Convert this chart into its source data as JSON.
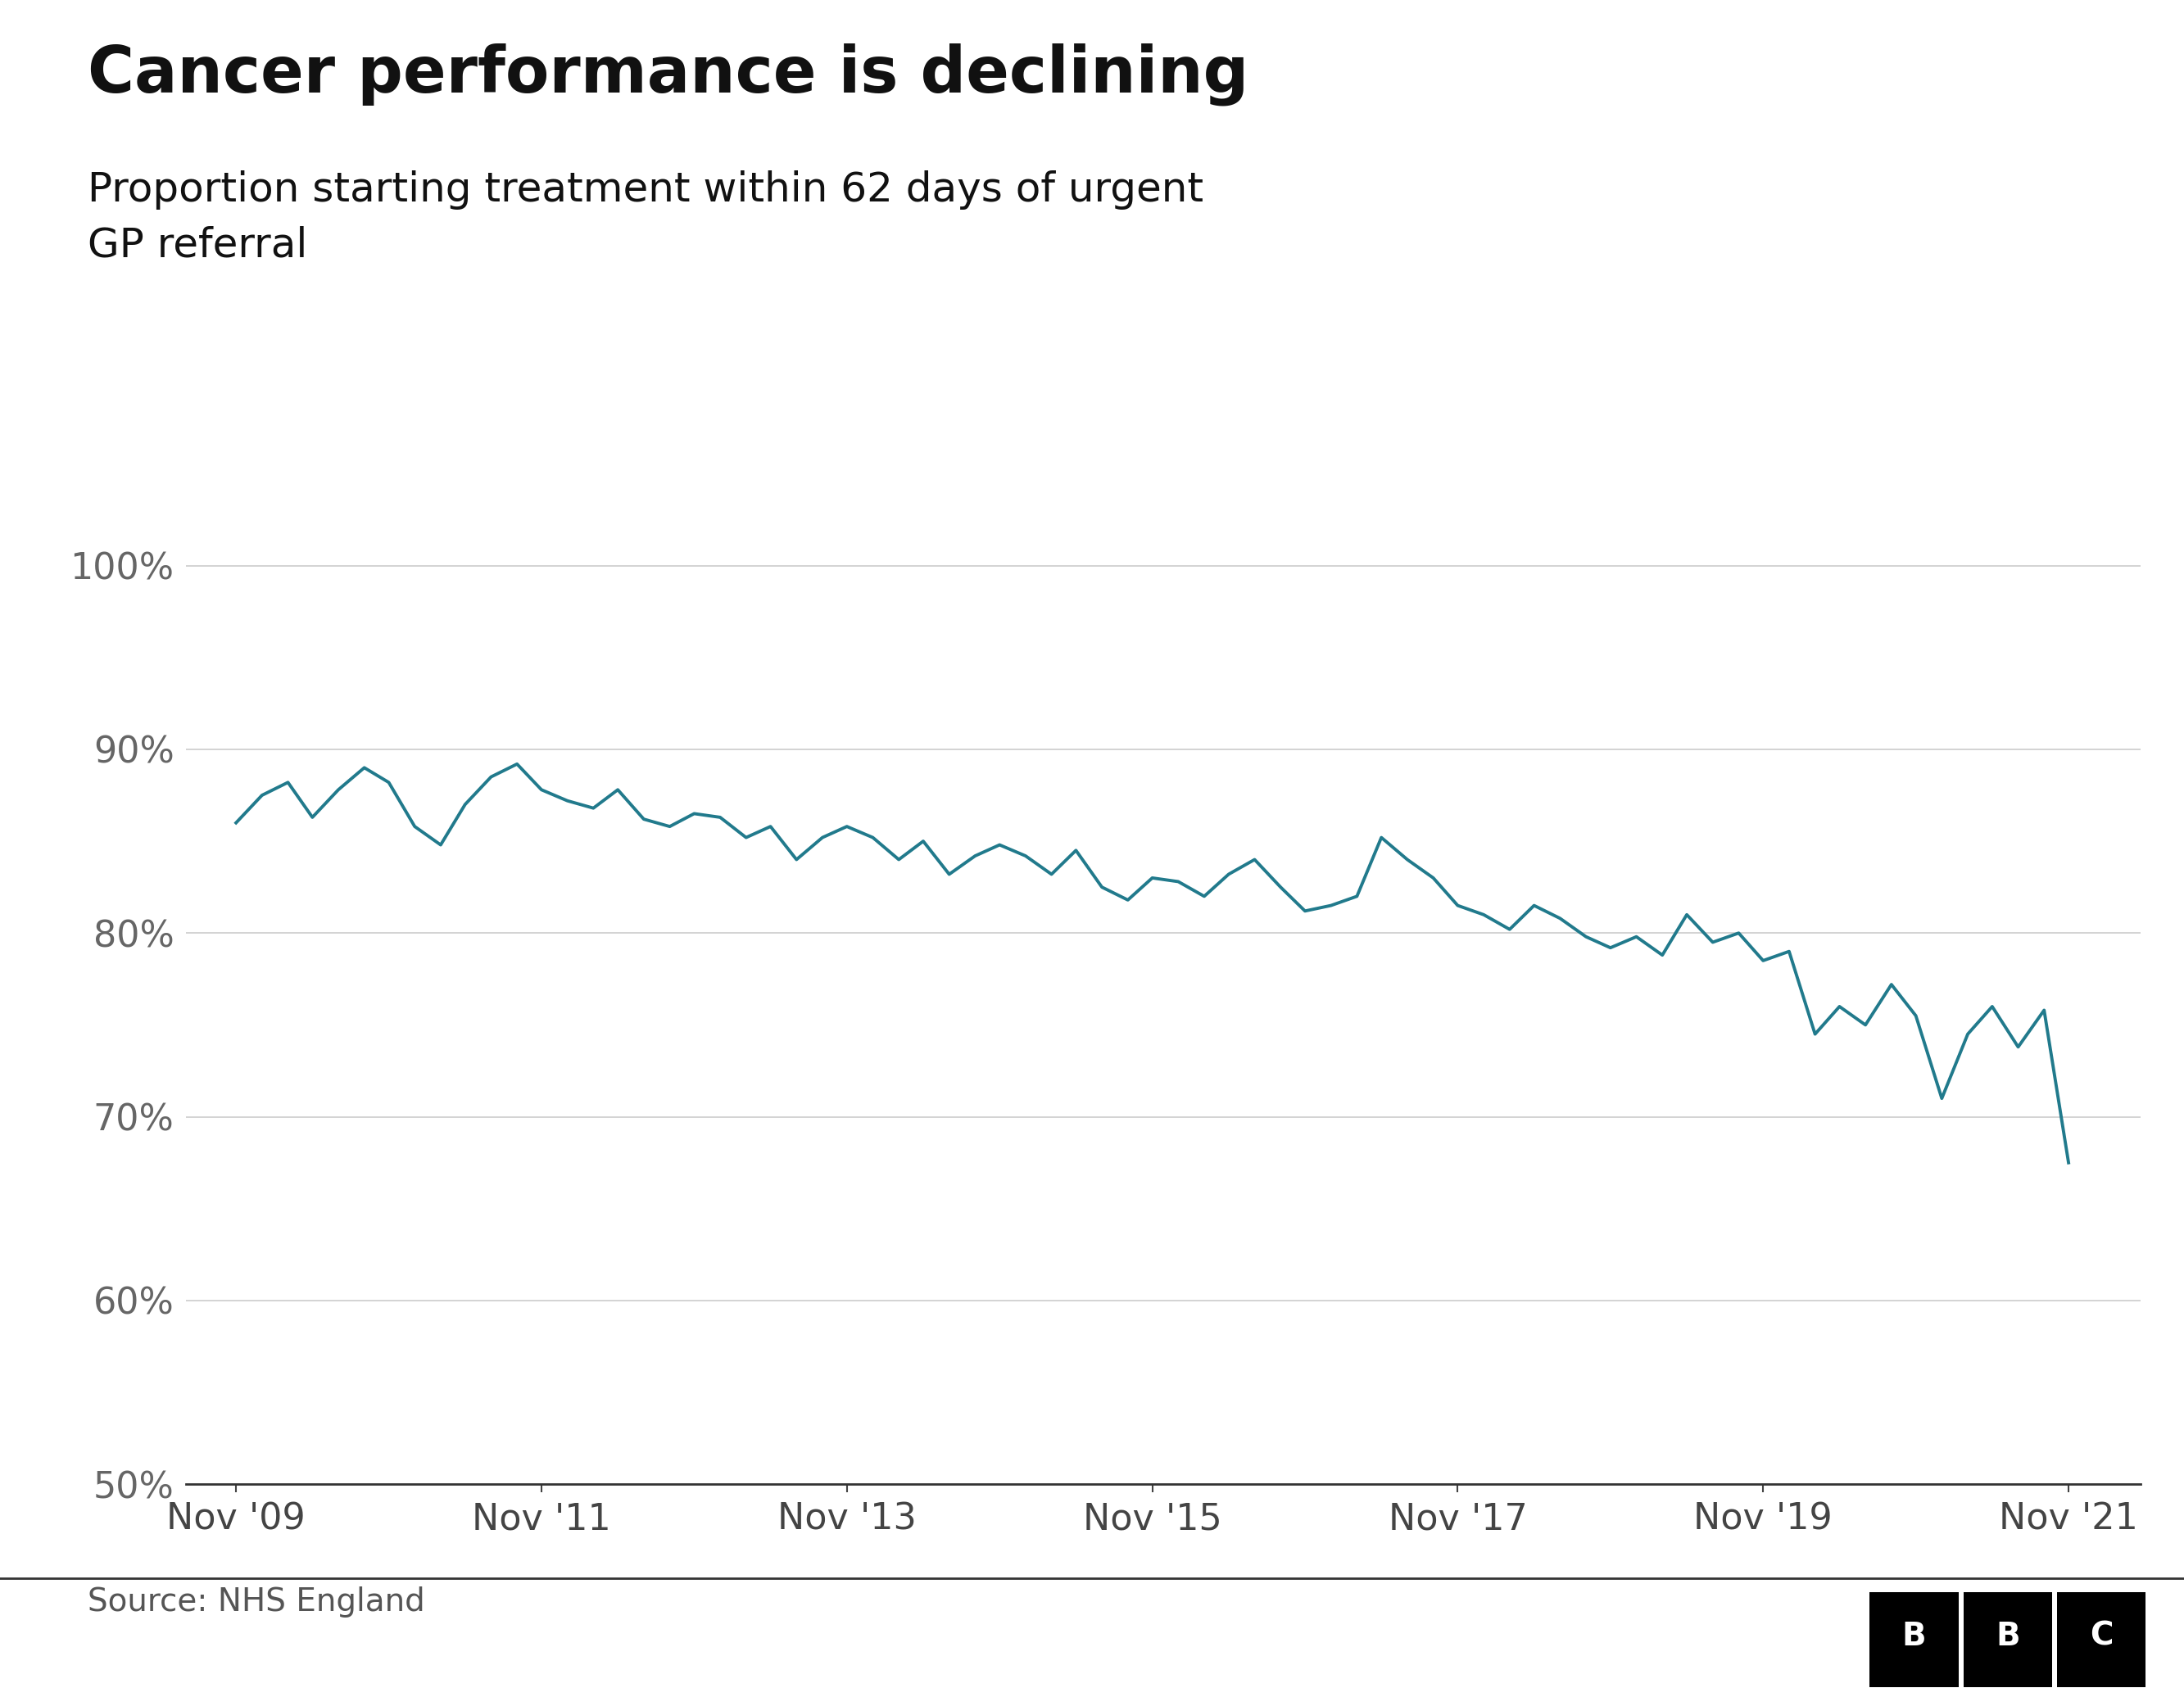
{
  "title": "Cancer performance is declining",
  "subtitle": "Proportion starting treatment within 62 days of urgent\nGP referral",
  "source": "Source: NHS England",
  "line_color": "#217a8c",
  "background_color": "#ffffff",
  "title_fontsize": 56,
  "subtitle_fontsize": 36,
  "axis_label_fontsize": 32,
  "source_fontsize": 28,
  "ylim": [
    50,
    102
  ],
  "yticks": [
    50,
    60,
    70,
    80,
    90,
    100
  ],
  "xtick_labels": [
    "Nov '09",
    "Nov '11",
    "Nov '13",
    "Nov '15",
    "Nov '17",
    "Nov '19",
    "Nov '21"
  ],
  "data": {
    "dates_numeric": [
      2009.83,
      2010.0,
      2010.17,
      2010.33,
      2010.5,
      2010.67,
      2010.83,
      2011.0,
      2011.17,
      2011.33,
      2011.5,
      2011.67,
      2011.83,
      2012.0,
      2012.17,
      2012.33,
      2012.5,
      2012.67,
      2012.83,
      2013.0,
      2013.17,
      2013.33,
      2013.5,
      2013.67,
      2013.83,
      2014.0,
      2014.17,
      2014.33,
      2014.5,
      2014.67,
      2014.83,
      2015.0,
      2015.17,
      2015.33,
      2015.5,
      2015.67,
      2015.83,
      2016.0,
      2016.17,
      2016.33,
      2016.5,
      2016.67,
      2016.83,
      2017.0,
      2017.17,
      2017.33,
      2017.5,
      2017.67,
      2017.83,
      2018.0,
      2018.17,
      2018.33,
      2018.5,
      2018.67,
      2018.83,
      2019.0,
      2019.17,
      2019.33,
      2019.5,
      2019.67,
      2019.83,
      2020.0,
      2020.17,
      2020.33,
      2020.5,
      2020.67,
      2020.83,
      2021.0,
      2021.17,
      2021.33,
      2021.5,
      2021.67,
      2021.83
    ],
    "values": [
      86.0,
      87.5,
      88.2,
      86.3,
      87.8,
      89.0,
      88.2,
      85.8,
      84.8,
      87.0,
      88.5,
      89.2,
      87.8,
      87.2,
      86.8,
      87.8,
      86.2,
      85.8,
      86.5,
      86.3,
      85.2,
      85.8,
      84.0,
      85.2,
      85.8,
      85.2,
      84.0,
      85.0,
      83.2,
      84.2,
      84.8,
      84.2,
      83.2,
      84.5,
      82.5,
      81.8,
      83.0,
      82.8,
      82.0,
      83.2,
      84.0,
      82.5,
      81.2,
      81.5,
      82.0,
      85.2,
      84.0,
      83.0,
      81.5,
      81.0,
      80.2,
      81.5,
      80.8,
      79.8,
      79.2,
      79.8,
      78.8,
      81.0,
      79.5,
      80.0,
      78.5,
      79.0,
      74.5,
      76.0,
      75.0,
      77.2,
      75.5,
      71.0,
      74.5,
      76.0,
      73.8,
      75.8,
      67.5
    ]
  }
}
